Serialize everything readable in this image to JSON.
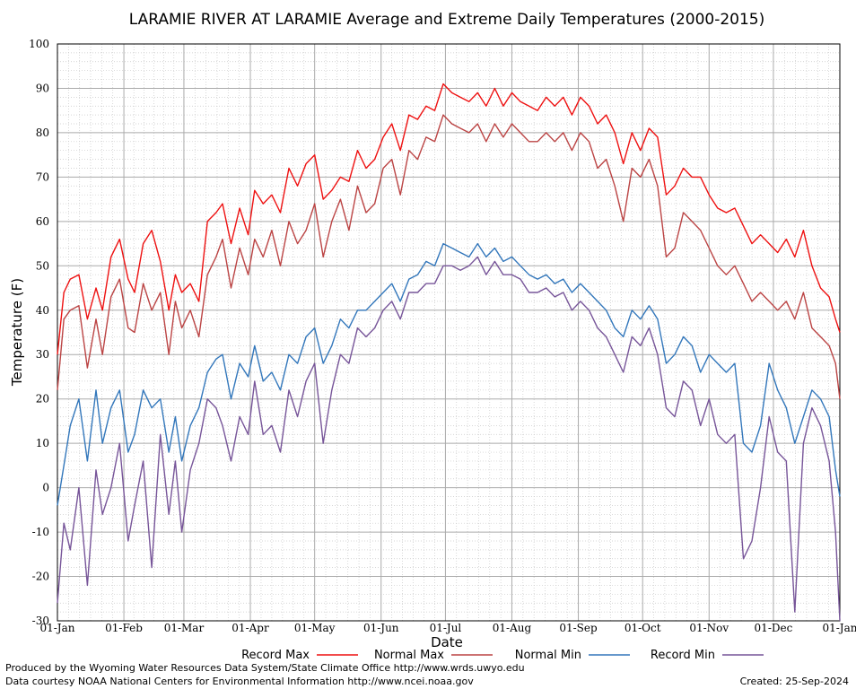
{
  "chart_data": {
    "type": "line",
    "title": "LARAMIE RIVER AT LARAMIE Average and Extreme Daily Temperatures (2000-2015)",
    "xlabel": "Date",
    "ylabel": "Temperature (F)",
    "ylim": [
      -30,
      100
    ],
    "yticks": [
      -30,
      -20,
      -10,
      0,
      10,
      20,
      30,
      40,
      50,
      60,
      70,
      80,
      90,
      100
    ],
    "xlim": [
      0,
      365
    ],
    "xticks": [
      {
        "day": 0,
        "label": "01-Jan"
      },
      {
        "day": 31,
        "label": "01-Feb"
      },
      {
        "day": 59,
        "label": "01-Mar"
      },
      {
        "day": 90,
        "label": "01-Apr"
      },
      {
        "day": 120,
        "label": "01-May"
      },
      {
        "day": 151,
        "label": "01-Jun"
      },
      {
        "day": 181,
        "label": "01-Jul"
      },
      {
        "day": 212,
        "label": "01-Aug"
      },
      {
        "day": 243,
        "label": "01-Sep"
      },
      {
        "day": 273,
        "label": "01-Oct"
      },
      {
        "day": 304,
        "label": "01-Nov"
      },
      {
        "day": 334,
        "label": "01-Dec"
      },
      {
        "day": 365,
        "label": "01-Jan"
      }
    ],
    "grid": true,
    "legend_position": "bottom",
    "series": [
      {
        "name": "Record Max",
        "color": "#ee1111",
        "x": [
          0,
          3,
          6,
          10,
          14,
          18,
          21,
          25,
          29,
          33,
          36,
          40,
          44,
          48,
          52,
          55,
          58,
          62,
          66,
          70,
          74,
          77,
          81,
          85,
          89,
          92,
          96,
          100,
          104,
          108,
          112,
          116,
          120,
          124,
          128,
          132,
          136,
          140,
          144,
          148,
          152,
          156,
          160,
          164,
          168,
          172,
          176,
          180,
          184,
          188,
          192,
          196,
          200,
          204,
          208,
          212,
          216,
          220,
          224,
          228,
          232,
          236,
          240,
          244,
          248,
          252,
          256,
          260,
          264,
          268,
          272,
          276,
          280,
          284,
          288,
          292,
          296,
          300,
          304,
          308,
          312,
          316,
          320,
          324,
          328,
          332,
          336,
          340,
          344,
          348,
          352,
          356,
          360,
          363,
          365
        ],
        "y": [
          30,
          44,
          47,
          48,
          38,
          45,
          40,
          52,
          56,
          47,
          44,
          55,
          58,
          51,
          40,
          48,
          44,
          46,
          42,
          60,
          62,
          64,
          55,
          63,
          57,
          67,
          64,
          66,
          62,
          72,
          68,
          73,
          75,
          65,
          67,
          70,
          69,
          76,
          72,
          74,
          79,
          82,
          76,
          84,
          83,
          86,
          85,
          91,
          89,
          88,
          87,
          89,
          86,
          90,
          86,
          89,
          87,
          86,
          85,
          88,
          86,
          88,
          84,
          88,
          86,
          82,
          84,
          80,
          73,
          80,
          76,
          81,
          79,
          66,
          68,
          72,
          70,
          70,
          66,
          63,
          62,
          63,
          59,
          55,
          57,
          55,
          53,
          56,
          52,
          58,
          50,
          45,
          43,
          38,
          35
        ]
      },
      {
        "name": "Normal Max",
        "color": "#bb4444",
        "x": [
          0,
          3,
          6,
          10,
          14,
          18,
          21,
          25,
          29,
          33,
          36,
          40,
          44,
          48,
          52,
          55,
          58,
          62,
          66,
          70,
          74,
          77,
          81,
          85,
          89,
          92,
          96,
          100,
          104,
          108,
          112,
          116,
          120,
          124,
          128,
          132,
          136,
          140,
          144,
          148,
          152,
          156,
          160,
          164,
          168,
          172,
          176,
          180,
          184,
          188,
          192,
          196,
          200,
          204,
          208,
          212,
          216,
          220,
          224,
          228,
          232,
          236,
          240,
          244,
          248,
          252,
          256,
          260,
          264,
          268,
          272,
          276,
          280,
          284,
          288,
          292,
          296,
          300,
          304,
          308,
          312,
          316,
          320,
          324,
          328,
          332,
          336,
          340,
          344,
          348,
          352,
          356,
          360,
          363,
          365
        ],
        "y": [
          22,
          38,
          40,
          41,
          27,
          38,
          30,
          43,
          47,
          36,
          35,
          46,
          40,
          44,
          30,
          42,
          36,
          40,
          34,
          48,
          52,
          56,
          45,
          54,
          48,
          56,
          52,
          58,
          50,
          60,
          55,
          58,
          64,
          52,
          60,
          65,
          58,
          68,
          62,
          64,
          72,
          74,
          66,
          76,
          74,
          79,
          78,
          84,
          82,
          81,
          80,
          82,
          78,
          82,
          79,
          82,
          80,
          78,
          78,
          80,
          78,
          80,
          76,
          80,
          78,
          72,
          74,
          68,
          60,
          72,
          70,
          74,
          68,
          52,
          54,
          62,
          60,
          58,
          54,
          50,
          48,
          50,
          46,
          42,
          44,
          42,
          40,
          42,
          38,
          44,
          36,
          34,
          32,
          28,
          20
        ]
      },
      {
        "name": "Normal Min",
        "color": "#3377bb",
        "x": [
          0,
          3,
          6,
          10,
          14,
          18,
          21,
          25,
          29,
          33,
          36,
          40,
          44,
          48,
          52,
          55,
          58,
          62,
          66,
          70,
          74,
          77,
          81,
          85,
          89,
          92,
          96,
          100,
          104,
          108,
          112,
          116,
          120,
          124,
          128,
          132,
          136,
          140,
          144,
          148,
          152,
          156,
          160,
          164,
          168,
          172,
          176,
          180,
          184,
          188,
          192,
          196,
          200,
          204,
          208,
          212,
          216,
          220,
          224,
          228,
          232,
          236,
          240,
          244,
          248,
          252,
          256,
          260,
          264,
          268,
          272,
          276,
          280,
          284,
          288,
          292,
          296,
          300,
          304,
          308,
          312,
          316,
          320,
          324,
          328,
          332,
          336,
          340,
          344,
          348,
          352,
          356,
          360,
          363,
          365
        ],
        "y": [
          -4,
          5,
          14,
          20,
          6,
          22,
          10,
          18,
          22,
          8,
          12,
          22,
          18,
          20,
          8,
          16,
          6,
          14,
          18,
          26,
          29,
          30,
          20,
          28,
          25,
          32,
          24,
          26,
          22,
          30,
          28,
          34,
          36,
          28,
          32,
          38,
          36,
          40,
          40,
          42,
          44,
          46,
          42,
          47,
          48,
          51,
          50,
          55,
          54,
          53,
          52,
          55,
          52,
          54,
          51,
          52,
          50,
          48,
          47,
          48,
          46,
          47,
          44,
          46,
          44,
          42,
          40,
          36,
          34,
          40,
          38,
          41,
          38,
          28,
          30,
          34,
          32,
          26,
          30,
          28,
          26,
          28,
          10,
          8,
          14,
          28,
          22,
          18,
          10,
          16,
          22,
          20,
          16,
          4,
          -2
        ]
      },
      {
        "name": "Record Min",
        "color": "#775599",
        "x": [
          0,
          3,
          6,
          10,
          14,
          18,
          21,
          25,
          29,
          33,
          36,
          40,
          44,
          48,
          52,
          55,
          58,
          62,
          66,
          70,
          74,
          77,
          81,
          85,
          89,
          92,
          96,
          100,
          104,
          108,
          112,
          116,
          120,
          124,
          128,
          132,
          136,
          140,
          144,
          148,
          152,
          156,
          160,
          164,
          168,
          172,
          176,
          180,
          184,
          188,
          192,
          196,
          200,
          204,
          208,
          212,
          216,
          220,
          224,
          228,
          232,
          236,
          240,
          244,
          248,
          252,
          256,
          260,
          264,
          268,
          272,
          276,
          280,
          284,
          288,
          292,
          296,
          300,
          304,
          308,
          312,
          316,
          320,
          324,
          328,
          332,
          336,
          340,
          344,
          348,
          352,
          356,
          360,
          363,
          365
        ],
        "y": [
          -26,
          -8,
          -14,
          0,
          -22,
          4,
          -6,
          0,
          10,
          -12,
          -4,
          6,
          -18,
          12,
          -6,
          6,
          -10,
          4,
          10,
          20,
          18,
          14,
          6,
          16,
          12,
          24,
          12,
          14,
          8,
          22,
          16,
          24,
          28,
          10,
          22,
          30,
          28,
          36,
          34,
          36,
          40,
          42,
          38,
          44,
          44,
          46,
          46,
          50,
          50,
          49,
          50,
          52,
          48,
          51,
          48,
          48,
          47,
          44,
          44,
          45,
          43,
          44,
          40,
          42,
          40,
          36,
          34,
          30,
          26,
          34,
          32,
          36,
          30,
          18,
          16,
          24,
          22,
          14,
          20,
          12,
          10,
          12,
          -16,
          -12,
          0,
          16,
          8,
          6,
          -28,
          10,
          18,
          14,
          6,
          -10,
          -30
        ]
      }
    ]
  },
  "legend": [
    {
      "label": "Record Max",
      "color": "#ee1111"
    },
    {
      "label": "Normal Max",
      "color": "#bb4444"
    },
    {
      "label": "Normal Min",
      "color": "#3377bb"
    },
    {
      "label": "Record Min",
      "color": "#775599"
    }
  ],
  "footer": {
    "produced_by": "Produced by the Wyoming Water Resources Data System/State Climate Office http://www.wrds.uwyo.edu",
    "data_courtesy": "Data courtesy NOAA National Centers for Environmental Information http://www.ncei.noaa.gov",
    "created": "Created:  25-Sep-2024"
  }
}
